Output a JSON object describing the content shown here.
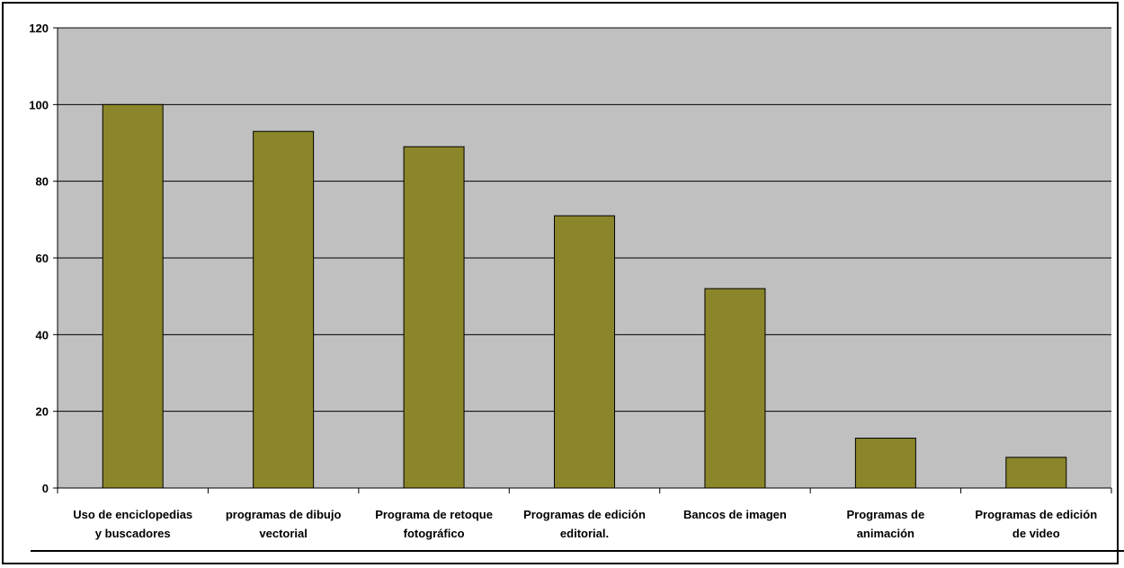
{
  "chart_data": {
    "type": "bar",
    "categories": [
      [
        "Uso de enciclopedias",
        "y buscadores"
      ],
      [
        "programas de dibujo",
        "vectorial"
      ],
      [
        "Programa de retoque",
        "fotográfico"
      ],
      [
        "Programas de edición",
        "editorial."
      ],
      [
        "Bancos de imagen"
      ],
      [
        "Programas de",
        "animación"
      ],
      [
        "Programas de edición",
        "de video"
      ]
    ],
    "values": [
      100,
      93,
      89,
      71,
      52,
      13,
      8
    ],
    "ylim": [
      0,
      120
    ],
    "yticks": [
      "0",
      "20",
      "40",
      "60",
      "80",
      "100",
      "120"
    ],
    "grid": true,
    "legend": "none",
    "colors": {
      "bar": "#8b8629",
      "plot_background": "#c0c0c0",
      "gridline": "#000000"
    }
  }
}
